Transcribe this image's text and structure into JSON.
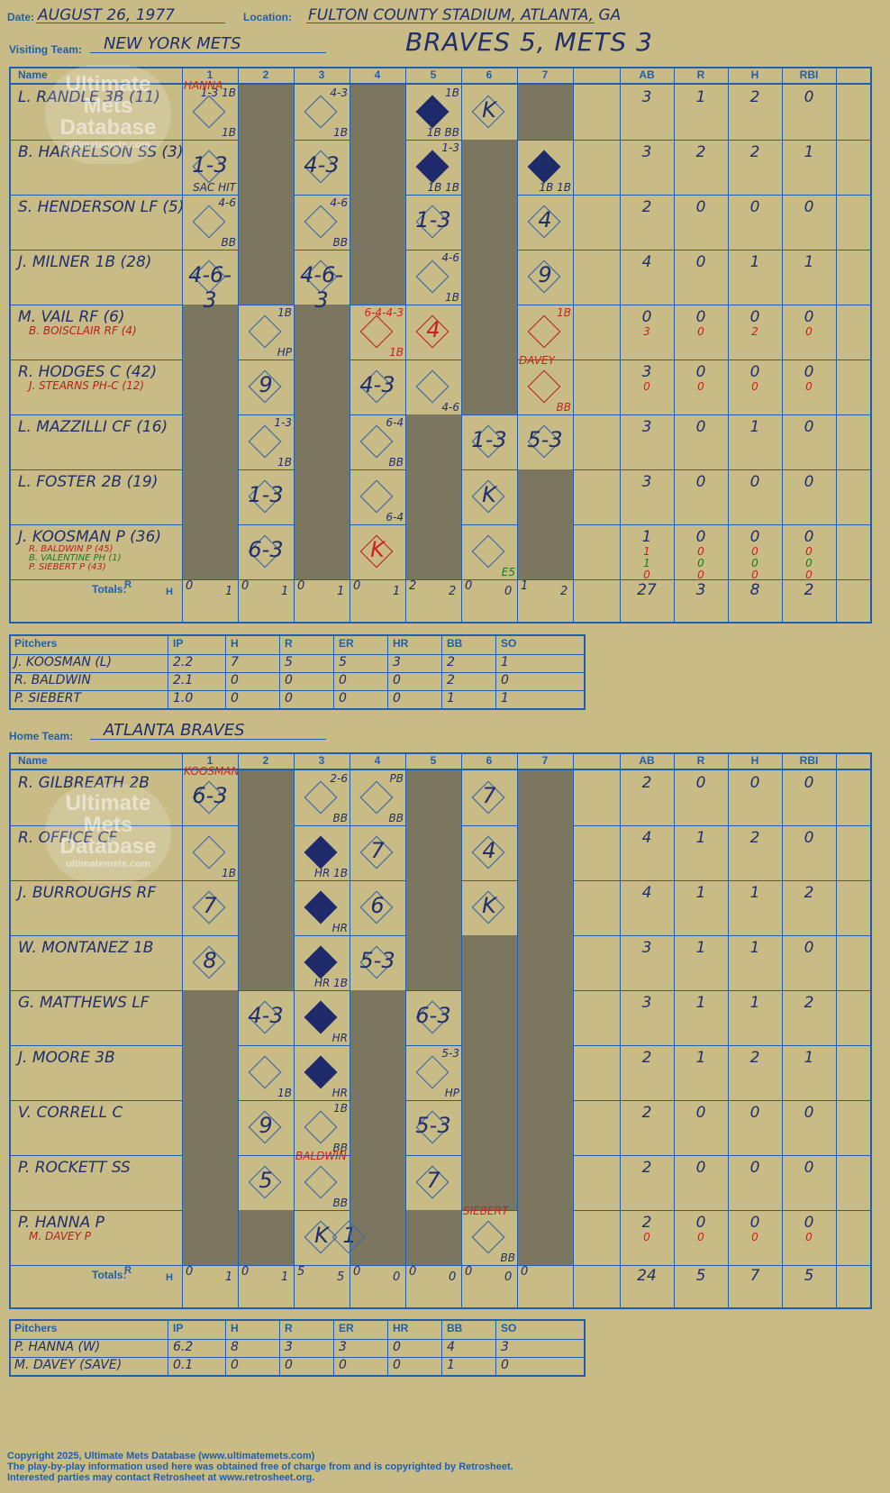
{
  "header": {
    "date_label": "Date:",
    "date": "AUGUST 26, 1977",
    "location_label": "Location:",
    "location": "FULTON COUNTY STADIUM, ATLANTA, GA",
    "visiting_label": "Visiting Team:",
    "visiting_team": "NEW YORK METS",
    "result": "BRAVES 5, METS 3",
    "home_label": "Home Team:",
    "home_team": "ATLANTA BRAVES"
  },
  "columns": {
    "name": "Name",
    "innings": [
      "1",
      "2",
      "3",
      "4",
      "5",
      "6",
      "7"
    ],
    "ab": "AB",
    "r": "R",
    "h": "H",
    "rbi": "RBI",
    "totals": "Totals:",
    "rh": [
      "R",
      "H"
    ]
  },
  "watermark": [
    "Ultimate",
    "Mets",
    "Database",
    "ultimatemets.com"
  ],
  "visitors": {
    "batters": [
      {
        "name": "L. RANDLE 3B (11)",
        "subs": [],
        "ab": [
          "3"
        ],
        "r": [
          "1"
        ],
        "h": [
          "2"
        ],
        "rbi": [
          "0"
        ]
      },
      {
        "name": "B. HARRELSON SS (3)",
        "subs": [],
        "ab": [
          "3"
        ],
        "r": [
          "2"
        ],
        "h": [
          "2"
        ],
        "rbi": [
          "1"
        ]
      },
      {
        "name": "S. HENDERSON LF (5)",
        "subs": [],
        "ab": [
          "2"
        ],
        "r": [
          "0"
        ],
        "h": [
          "0"
        ],
        "rbi": [
          "0"
        ]
      },
      {
        "name": "J. MILNER 1B (28)",
        "subs": [],
        "ab": [
          "4"
        ],
        "r": [
          "0"
        ],
        "h": [
          "1"
        ],
        "rbi": [
          "1"
        ]
      },
      {
        "name": "M. VAIL RF (6)",
        "subs": [
          "B. BOISCLAIR RF (4)"
        ],
        "ab": [
          "0",
          "3"
        ],
        "r": [
          "0",
          "0"
        ],
        "h": [
          "0",
          "2"
        ],
        "rbi": [
          "0",
          "0"
        ]
      },
      {
        "name": "R. HODGES C (42)",
        "subs": [
          "J. STEARNS PH-C (12)"
        ],
        "ab": [
          "3",
          "0"
        ],
        "r": [
          "0",
          "0"
        ],
        "h": [
          "0",
          "0"
        ],
        "rbi": [
          "0",
          "0"
        ]
      },
      {
        "name": "L. MAZZILLI CF (16)",
        "subs": [],
        "ab": [
          "3"
        ],
        "r": [
          "0"
        ],
        "h": [
          "1"
        ],
        "rbi": [
          "0"
        ]
      },
      {
        "name": "L. FOSTER 2B (19)",
        "subs": [],
        "ab": [
          "3"
        ],
        "r": [
          "0"
        ],
        "h": [
          "0"
        ],
        "rbi": [
          "0"
        ]
      },
      {
        "name": "J. KOOSMAN P (36)",
        "subs": [
          "R. BALDWIN P (45)",
          "B. VALENTINE PH (1)",
          "P. SIEBERT P (43)"
        ],
        "ab": [
          "1",
          "1",
          "1",
          "0"
        ],
        "r": [
          "0",
          "0",
          "0",
          "0"
        ],
        "h": [
          "0",
          "0",
          "0",
          "0"
        ],
        "rbi": [
          "0",
          "0",
          "0",
          "0"
        ]
      }
    ],
    "plays": [
      [
        {
          "c": 0,
          "p": "",
          "top": "1-3 1B",
          "br": "1B",
          "dia": false,
          "note": "HANNA"
        },
        {
          "c": 2,
          "p": "",
          "top": "4-3",
          "br": "1B"
        },
        {
          "c": 4,
          "p": "",
          "top": "1B",
          "br": "1B BB",
          "dia": true
        },
        {
          "c": 5,
          "p": "K"
        }
      ],
      [
        {
          "c": 0,
          "p": "1-3",
          "br": "SAC HIT"
        },
        {
          "c": 2,
          "p": "4-3"
        },
        {
          "c": 4,
          "p": "",
          "top": "1-3",
          "br": "1B 1B",
          "dia": true
        },
        {
          "c": 6,
          "p": "",
          "br": "1B 1B",
          "dia": true
        }
      ],
      [
        {
          "c": 0,
          "p": "",
          "top": "4-6",
          "br": "BB"
        },
        {
          "c": 2,
          "p": "",
          "top": "4-6",
          "br": "BB"
        },
        {
          "c": 4,
          "p": "1-3"
        },
        {
          "c": 6,
          "p": "4"
        }
      ],
      [
        {
          "c": 0,
          "p": "4-6-3"
        },
        {
          "c": 2,
          "p": "4-6-3"
        },
        {
          "c": 4,
          "p": "",
          "top": "4-6",
          "br": "1B"
        },
        {
          "c": 6,
          "p": "9"
        }
      ],
      [
        {
          "c": 1,
          "p": "",
          "top": "1B",
          "br": "HP"
        },
        {
          "c": 3,
          "p": "",
          "top": "6-4-4-3",
          "br": "1B",
          "red": true
        },
        {
          "c": 4,
          "p": "4",
          "red": true
        },
        {
          "c": 6,
          "p": "",
          "top": "1B",
          "red": true
        }
      ],
      [
        {
          "c": 1,
          "p": "9"
        },
        {
          "c": 3,
          "p": "4-3"
        },
        {
          "c": 4,
          "p": "",
          "br": "4-6"
        },
        {
          "c": 6,
          "p": "",
          "br": "BB",
          "note": "DAVEY",
          "red": true
        }
      ],
      [
        {
          "c": 1,
          "p": "",
          "top": "1-3",
          "br": "1B"
        },
        {
          "c": 3,
          "p": "",
          "top": "6-4",
          "br": "BB"
        },
        {
          "c": 5,
          "p": "1-3"
        },
        {
          "c": 6,
          "p": "5-3"
        }
      ],
      [
        {
          "c": 1,
          "p": "1-3"
        },
        {
          "c": 3,
          "p": "",
          "br": "6-4"
        },
        {
          "c": 5,
          "p": "K"
        }
      ],
      [
        {
          "c": 1,
          "p": "6-3"
        },
        {
          "c": 3,
          "p": "K",
          "red": true
        },
        {
          "c": 5,
          "p": "",
          "br": "E5",
          "green": true
        }
      ]
    ],
    "totals": {
      "innings": [
        [
          "0",
          "1"
        ],
        [
          "0",
          "1"
        ],
        [
          "0",
          "1"
        ],
        [
          "0",
          "1"
        ],
        [
          "2",
          "2"
        ],
        [
          "0",
          "0"
        ],
        [
          "1",
          "2"
        ]
      ],
      "ab": "27",
      "r": "3",
      "h": "8",
      "rbi": "2"
    },
    "pitchers": [
      {
        "name": "J. KOOSMAN (L)",
        "ip": "2.2",
        "h": "7",
        "r": "5",
        "er": "5",
        "hr": "3",
        "bb": "2",
        "so": "1"
      },
      {
        "name": "R. BALDWIN",
        "ip": "2.1",
        "h": "0",
        "r": "0",
        "er": "0",
        "hr": "0",
        "bb": "2",
        "so": "0"
      },
      {
        "name": "P. SIEBERT",
        "ip": "1.0",
        "h": "0",
        "r": "0",
        "er": "0",
        "hr": "0",
        "bb": "1",
        "so": "1"
      }
    ]
  },
  "home": {
    "batters": [
      {
        "name": "R. GILBREATH 2B",
        "subs": [],
        "ab": [
          "2"
        ],
        "r": [
          "0"
        ],
        "h": [
          "0"
        ],
        "rbi": [
          "0"
        ]
      },
      {
        "name": "R. OFFICE CF",
        "subs": [],
        "ab": [
          "4"
        ],
        "r": [
          "1"
        ],
        "h": [
          "2"
        ],
        "rbi": [
          "0"
        ]
      },
      {
        "name": "J. BURROUGHS RF",
        "subs": [],
        "ab": [
          "4"
        ],
        "r": [
          "1"
        ],
        "h": [
          "1"
        ],
        "rbi": [
          "2"
        ]
      },
      {
        "name": "W. MONTANEZ 1B",
        "subs": [],
        "ab": [
          "3"
        ],
        "r": [
          "1"
        ],
        "h": [
          "1"
        ],
        "rbi": [
          "0"
        ]
      },
      {
        "name": "G. MATTHEWS LF",
        "subs": [],
        "ab": [
          "3"
        ],
        "r": [
          "1"
        ],
        "h": [
          "1"
        ],
        "rbi": [
          "2"
        ]
      },
      {
        "name": "J. MOORE 3B",
        "subs": [],
        "ab": [
          "2"
        ],
        "r": [
          "1"
        ],
        "h": [
          "2"
        ],
        "rbi": [
          "1"
        ]
      },
      {
        "name": "V. CORRELL C",
        "subs": [],
        "ab": [
          "2"
        ],
        "r": [
          "0"
        ],
        "h": [
          "0"
        ],
        "rbi": [
          "0"
        ]
      },
      {
        "name": "P. ROCKETT SS",
        "subs": [],
        "ab": [
          "2"
        ],
        "r": [
          "0"
        ],
        "h": [
          "0"
        ],
        "rbi": [
          "0"
        ]
      },
      {
        "name": "P. HANNA P",
        "subs": [
          "M. DAVEY P"
        ],
        "ab": [
          "2",
          "0"
        ],
        "r": [
          "0",
          "0"
        ],
        "h": [
          "0",
          "0"
        ],
        "rbi": [
          "0",
          "0"
        ]
      }
    ],
    "plays": [
      [
        {
          "c": 0,
          "p": "6-3",
          "note": "KOOSMAN"
        },
        {
          "c": 2,
          "p": "",
          "top": "2-6",
          "br": "BB"
        },
        {
          "c": 3,
          "p": "",
          "top": "PB",
          "br": "BB"
        },
        {
          "c": 5,
          "p": "7"
        }
      ],
      [
        {
          "c": 0,
          "p": "",
          "br": "1B"
        },
        {
          "c": 2,
          "p": "",
          "br": "HR 1B",
          "dia": true
        },
        {
          "c": 3,
          "p": "7"
        },
        {
          "c": 5,
          "p": "4"
        }
      ],
      [
        {
          "c": 0,
          "p": "7"
        },
        {
          "c": 2,
          "p": "",
          "br": "HR",
          "dia": true
        },
        {
          "c": 3,
          "p": "6"
        },
        {
          "c": 5,
          "p": "K"
        }
      ],
      [
        {
          "c": 0,
          "p": "8"
        },
        {
          "c": 2,
          "p": "",
          "br": "HR 1B",
          "dia": true
        },
        {
          "c": 3,
          "p": "5-3"
        }
      ],
      [
        {
          "c": 1,
          "p": "4-3"
        },
        {
          "c": 2,
          "p": "",
          "br": "HR",
          "dia": true
        },
        {
          "c": 4,
          "p": "6-3"
        }
      ],
      [
        {
          "c": 1,
          "p": "",
          "br": "1B"
        },
        {
          "c": 2,
          "p": "",
          "br": "HR",
          "dia": true
        },
        {
          "c": 4,
          "p": "",
          "top": "5-3",
          "br": "HP"
        }
      ],
      [
        {
          "c": 1,
          "p": "9"
        },
        {
          "c": 2,
          "p": "",
          "top": "1B",
          "br": "BB"
        },
        {
          "c": 4,
          "p": "5-3"
        }
      ],
      [
        {
          "c": 1,
          "p": "5"
        },
        {
          "c": 2,
          "p": "",
          "br": "BB",
          "note": "BALDWIN"
        },
        {
          "c": 4,
          "p": "7"
        }
      ],
      [
        {
          "c": 2,
          "p": "K"
        },
        {
          "c": 2.5,
          "p": "1"
        },
        {
          "c": 5,
          "p": "",
          "br": "BB",
          "note": "SIEBERT"
        }
      ]
    ],
    "totals": {
      "innings": [
        [
          "0",
          "1"
        ],
        [
          "0",
          "1"
        ],
        [
          "5",
          "5"
        ],
        [
          "0",
          "0"
        ],
        [
          "0",
          "0"
        ],
        [
          "0",
          "0"
        ],
        [
          "0",
          ""
        ]
      ],
      "ab": "24",
      "r": "5",
      "h": "7",
      "rbi": "5"
    },
    "pitchers": [
      {
        "name": "P. HANNA (W)",
        "ip": "6.2",
        "h": "8",
        "r": "3",
        "er": "3",
        "hr": "0",
        "bb": "4",
        "so": "3"
      },
      {
        "name": "M. DAVEY (SAVE)",
        "ip": "0.1",
        "h": "0",
        "r": "0",
        "er": "0",
        "hr": "0",
        "bb": "1",
        "so": "0"
      }
    ]
  },
  "pitcher_cols": [
    "Pitchers",
    "IP",
    "H",
    "R",
    "ER",
    "HR",
    "BB",
    "SO"
  ],
  "footer": [
    "Copyright 2025, Ultimate Mets Database (www.ultimatemets.com)",
    "The play-by-play information used here was obtained free of charge from and is copyrighted by Retrosheet.",
    "Interested parties may contact Retrosheet at www.retrosheet.org."
  ]
}
